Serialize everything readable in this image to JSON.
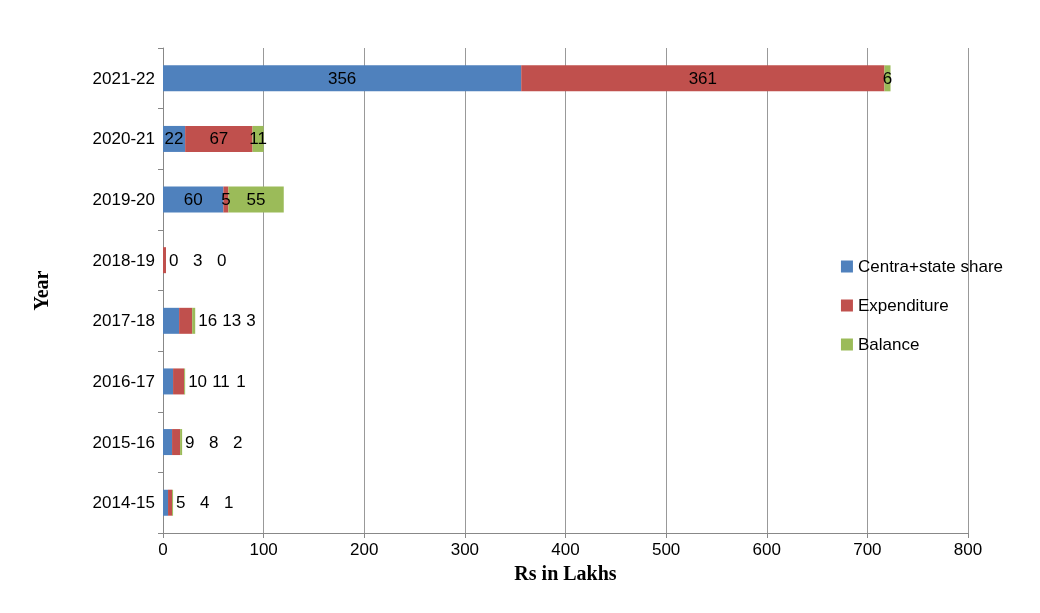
{
  "chart_data": {
    "type": "bar",
    "orientation": "horizontal",
    "stacked": true,
    "xlabel": "Rs in Lakhs",
    "ylabel": "Year",
    "categories": [
      "2021-22",
      "2020-21",
      "2019-20",
      "2018-19",
      "2017-18",
      "2016-17",
      "2015-16",
      "2014-15"
    ],
    "series": [
      {
        "name": "Centra+state share",
        "color": "#4f81bd",
        "values": [
          356,
          22,
          60,
          0,
          16,
          10,
          9,
          5
        ]
      },
      {
        "name": "Expenditure",
        "color": "#c0504d",
        "values": [
          361,
          67,
          5,
          3,
          13,
          11,
          8,
          4
        ]
      },
      {
        "name": "Balance",
        "color": "#9bbb59",
        "values": [
          6,
          11,
          55,
          0,
          3,
          1,
          2,
          1
        ]
      }
    ],
    "xlim": [
      0,
      800
    ],
    "xticks": [
      0,
      100,
      200,
      300,
      400,
      500,
      600,
      700,
      800
    ],
    "grid": "x",
    "legend": "right",
    "data_labels": true
  }
}
